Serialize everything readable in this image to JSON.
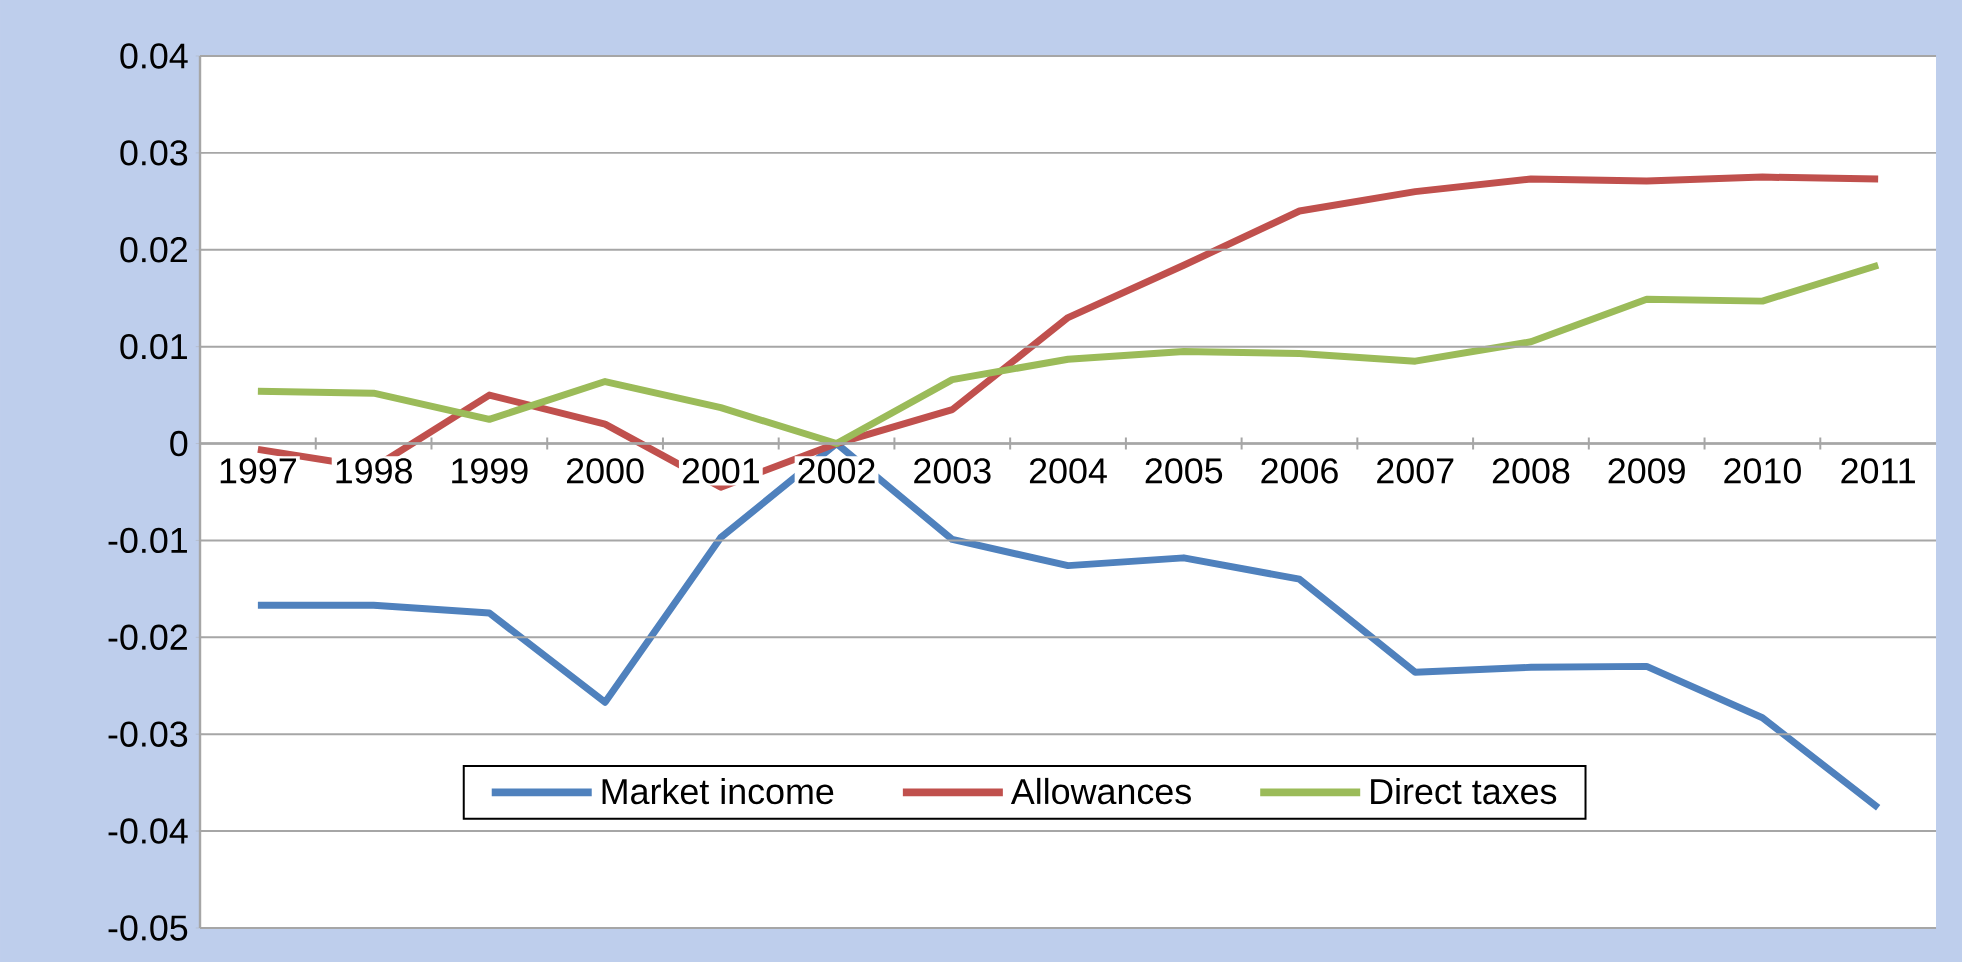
{
  "chart_data": {
    "type": "line",
    "categories": [
      "1997",
      "1998",
      "1999",
      "2000",
      "2001",
      "2002",
      "2003",
      "2004",
      "2005",
      "2006",
      "2007",
      "2008",
      "2009",
      "2010",
      "2011"
    ],
    "series": [
      {
        "name": "Market income",
        "color": "#4f81bd",
        "values": [
          -0.0167,
          -0.0167,
          -0.0175,
          -0.0267,
          -0.0097,
          0,
          -0.0099,
          -0.0126,
          -0.0118,
          -0.014,
          -0.0236,
          -0.0231,
          -0.023,
          -0.0283,
          -0.0376
        ]
      },
      {
        "name": "Allowances",
        "color": "#c0504d",
        "values": [
          -0.0006,
          -0.0025,
          0.005,
          0.002,
          -0.0045,
          0,
          0.0035,
          0.013,
          0.0184,
          0.024,
          0.026,
          0.0273,
          0.0271,
          0.0275,
          0.0273
        ]
      },
      {
        "name": "Direct taxes",
        "color": "#9bbb59",
        "values": [
          0.0054,
          0.0052,
          0.0025,
          0.0064,
          0.0037,
          0,
          0.0066,
          0.0087,
          0.0095,
          0.0093,
          0.0085,
          0.0105,
          0.0149,
          0.0147,
          0.0184
        ]
      }
    ],
    "ylim": [
      -0.05,
      0.04
    ],
    "yticks": [
      -0.05,
      -0.04,
      -0.03,
      -0.02,
      -0.01,
      0,
      0.01,
      0.02,
      0.03,
      0.04
    ],
    "grid": "y",
    "legend": "bottom",
    "marker": "none",
    "line_style": "solid"
  }
}
